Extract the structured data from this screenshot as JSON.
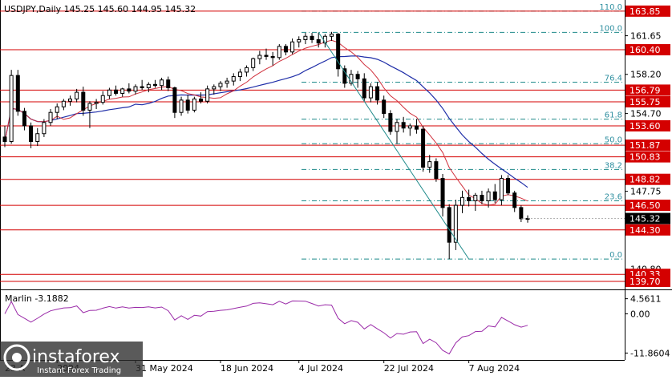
{
  "chart_data": {
    "type": "candlestick",
    "symbol_header": "USDJPY,Daily  145.25 145.60 144.95 145.32",
    "colors": {
      "background": "#ffffff",
      "candle_up": "#ffffff",
      "candle_down": "#000000",
      "level_line": "#d40000",
      "price_badge_red": "#d40000",
      "current_badge": "#000000",
      "fib_line": "#1f8a8a",
      "fib_text": "#2f8fa0",
      "ma_blue": "#1f2ea8",
      "ma_red": "#d0303c",
      "trendline": "#1f8a8a",
      "oscillator": "#9a2aa8"
    },
    "price_axis": {
      "range": [
        139.2,
        164.7
      ],
      "ticks": [
        "161.65",
        "158.20",
        "154.70",
        "147.75",
        "140.80"
      ]
    },
    "level_lines": [
      {
        "price": 163.85,
        "label": "163.85"
      },
      {
        "price": 160.4,
        "label": "160.40"
      },
      {
        "price": 156.79,
        "label": "156.79"
      },
      {
        "price": 155.75,
        "label": "155.75"
      },
      {
        "price": 153.6,
        "label": "153.60"
      },
      {
        "price": 151.87,
        "label": "151.87"
      },
      {
        "price": 150.83,
        "label": "150.83"
      },
      {
        "price": 148.82,
        "label": "148.82"
      },
      {
        "price": 146.5,
        "label": "146.50"
      },
      {
        "price": 144.3,
        "label": "144.30"
      },
      {
        "price": 140.33,
        "label": "140.33"
      },
      {
        "price": 139.7,
        "label": "139.70"
      }
    ],
    "current_price": {
      "price": 145.32,
      "label": "145.32"
    },
    "fibonacci": [
      {
        "price": 163.85,
        "label": "110.0"
      },
      {
        "price": 161.95,
        "label": "100.0"
      },
      {
        "price": 157.5,
        "label": "76.4"
      },
      {
        "price": 154.2,
        "label": "61.8"
      },
      {
        "price": 152.0,
        "label": "50.0"
      },
      {
        "price": 149.7,
        "label": "38.2"
      },
      {
        "price": 146.9,
        "label": "23.6"
      },
      {
        "price": 141.7,
        "label": "0.0"
      }
    ],
    "trendline": {
      "from": {
        "bar": 48,
        "price": 161.95
      },
      "to": {
        "bar": 71,
        "price": 141.7
      }
    },
    "candles": [
      {
        "o": 152.6,
        "h": 153.6,
        "l": 151.7,
        "c": 152.2
      },
      {
        "o": 152.2,
        "h": 158.6,
        "l": 152.0,
        "c": 158.1
      },
      {
        "o": 158.1,
        "h": 158.6,
        "l": 154.5,
        "c": 154.9
      },
      {
        "o": 154.9,
        "h": 155.2,
        "l": 153.2,
        "c": 153.6
      },
      {
        "o": 153.6,
        "h": 153.9,
        "l": 151.6,
        "c": 152.2
      },
      {
        "o": 152.2,
        "h": 153.4,
        "l": 151.8,
        "c": 152.9
      },
      {
        "o": 152.9,
        "h": 154.2,
        "l": 152.6,
        "c": 153.9
      },
      {
        "o": 153.9,
        "h": 155.1,
        "l": 153.6,
        "c": 154.8
      },
      {
        "o": 154.8,
        "h": 155.6,
        "l": 154.2,
        "c": 155.3
      },
      {
        "o": 155.3,
        "h": 156.0,
        "l": 155.0,
        "c": 155.8
      },
      {
        "o": 155.8,
        "h": 156.3,
        "l": 155.4,
        "c": 156.0
      },
      {
        "o": 156.0,
        "h": 156.9,
        "l": 155.7,
        "c": 156.6
      },
      {
        "o": 156.6,
        "h": 157.1,
        "l": 154.5,
        "c": 155.0
      },
      {
        "o": 155.0,
        "h": 155.8,
        "l": 153.4,
        "c": 155.6
      },
      {
        "o": 155.6,
        "h": 156.0,
        "l": 155.1,
        "c": 155.7
      },
      {
        "o": 155.7,
        "h": 156.7,
        "l": 155.5,
        "c": 156.3
      },
      {
        "o": 156.3,
        "h": 157.0,
        "l": 156.0,
        "c": 156.8
      },
      {
        "o": 156.8,
        "h": 157.2,
        "l": 156.3,
        "c": 156.5
      },
      {
        "o": 156.5,
        "h": 157.0,
        "l": 156.2,
        "c": 156.9
      },
      {
        "o": 156.9,
        "h": 157.4,
        "l": 156.5,
        "c": 156.7
      },
      {
        "o": 156.7,
        "h": 157.3,
        "l": 156.4,
        "c": 157.1
      },
      {
        "o": 157.1,
        "h": 157.7,
        "l": 156.8,
        "c": 157.0
      },
      {
        "o": 157.0,
        "h": 157.5,
        "l": 156.6,
        "c": 157.3
      },
      {
        "o": 157.3,
        "h": 157.7,
        "l": 157.0,
        "c": 157.2
      },
      {
        "o": 157.2,
        "h": 157.9,
        "l": 156.8,
        "c": 157.7
      },
      {
        "o": 157.7,
        "h": 158.0,
        "l": 156.7,
        "c": 157.0
      },
      {
        "o": 157.0,
        "h": 157.1,
        "l": 154.3,
        "c": 154.8
      },
      {
        "o": 154.8,
        "h": 156.2,
        "l": 154.5,
        "c": 155.9
      },
      {
        "o": 155.9,
        "h": 156.4,
        "l": 154.7,
        "c": 155.0
      },
      {
        "o": 155.0,
        "h": 156.2,
        "l": 154.8,
        "c": 156.0
      },
      {
        "o": 156.0,
        "h": 156.6,
        "l": 155.6,
        "c": 155.8
      },
      {
        "o": 155.8,
        "h": 157.2,
        "l": 155.6,
        "c": 156.9
      },
      {
        "o": 156.9,
        "h": 157.3,
        "l": 156.4,
        "c": 157.1
      },
      {
        "o": 157.1,
        "h": 157.6,
        "l": 156.7,
        "c": 157.4
      },
      {
        "o": 157.4,
        "h": 157.9,
        "l": 157.0,
        "c": 157.6
      },
      {
        "o": 157.6,
        "h": 158.3,
        "l": 157.2,
        "c": 158.0
      },
      {
        "o": 158.0,
        "h": 158.7,
        "l": 157.6,
        "c": 158.4
      },
      {
        "o": 158.4,
        "h": 159.0,
        "l": 158.0,
        "c": 158.8
      },
      {
        "o": 158.8,
        "h": 159.7,
        "l": 158.5,
        "c": 159.6
      },
      {
        "o": 159.6,
        "h": 160.3,
        "l": 159.1,
        "c": 159.9
      },
      {
        "o": 159.9,
        "h": 160.5,
        "l": 159.5,
        "c": 159.8
      },
      {
        "o": 159.8,
        "h": 160.2,
        "l": 159.0,
        "c": 159.7
      },
      {
        "o": 159.7,
        "h": 160.9,
        "l": 159.5,
        "c": 160.7
      },
      {
        "o": 160.7,
        "h": 160.9,
        "l": 159.9,
        "c": 160.2
      },
      {
        "o": 160.2,
        "h": 161.4,
        "l": 160.0,
        "c": 161.1
      },
      {
        "o": 161.1,
        "h": 161.6,
        "l": 160.6,
        "c": 161.3
      },
      {
        "o": 161.3,
        "h": 161.9,
        "l": 160.9,
        "c": 161.6
      },
      {
        "o": 161.6,
        "h": 161.9,
        "l": 161.0,
        "c": 161.3
      },
      {
        "o": 161.3,
        "h": 161.95,
        "l": 160.6,
        "c": 161.0
      },
      {
        "o": 161.0,
        "h": 161.8,
        "l": 160.6,
        "c": 161.6
      },
      {
        "o": 161.6,
        "h": 162.0,
        "l": 161.2,
        "c": 161.8
      },
      {
        "o": 161.8,
        "h": 161.9,
        "l": 158.0,
        "c": 158.7
      },
      {
        "o": 158.7,
        "h": 159.0,
        "l": 157.0,
        "c": 157.4
      },
      {
        "o": 157.4,
        "h": 158.6,
        "l": 157.2,
        "c": 158.2
      },
      {
        "o": 158.2,
        "h": 158.5,
        "l": 157.0,
        "c": 157.8
      },
      {
        "o": 157.8,
        "h": 158.3,
        "l": 155.8,
        "c": 156.1
      },
      {
        "o": 156.1,
        "h": 157.4,
        "l": 155.7,
        "c": 157.1
      },
      {
        "o": 157.1,
        "h": 157.5,
        "l": 155.5,
        "c": 155.9
      },
      {
        "o": 155.9,
        "h": 156.3,
        "l": 154.3,
        "c": 154.7
      },
      {
        "o": 154.7,
        "h": 155.0,
        "l": 152.8,
        "c": 153.1
      },
      {
        "o": 153.1,
        "h": 154.2,
        "l": 152.0,
        "c": 153.9
      },
      {
        "o": 153.9,
        "h": 154.4,
        "l": 153.0,
        "c": 153.4
      },
      {
        "o": 153.4,
        "h": 153.8,
        "l": 152.7,
        "c": 153.6
      },
      {
        "o": 153.6,
        "h": 154.2,
        "l": 152.9,
        "c": 153.3
      },
      {
        "o": 153.3,
        "h": 153.6,
        "l": 149.5,
        "c": 149.9
      },
      {
        "o": 149.9,
        "h": 151.0,
        "l": 149.4,
        "c": 150.4
      },
      {
        "o": 150.4,
        "h": 150.7,
        "l": 148.6,
        "c": 148.9
      },
      {
        "o": 148.9,
        "h": 149.3,
        "l": 145.5,
        "c": 146.3
      },
      {
        "o": 146.3,
        "h": 146.6,
        "l": 141.7,
        "c": 143.2
      },
      {
        "o": 143.2,
        "h": 147.0,
        "l": 142.5,
        "c": 146.5
      },
      {
        "o": 146.5,
        "h": 147.8,
        "l": 145.8,
        "c": 147.2
      },
      {
        "o": 147.2,
        "h": 147.9,
        "l": 146.4,
        "c": 146.9
      },
      {
        "o": 146.9,
        "h": 147.6,
        "l": 146.0,
        "c": 147.4
      },
      {
        "o": 147.4,
        "h": 147.8,
        "l": 146.6,
        "c": 146.9
      },
      {
        "o": 146.9,
        "h": 148.0,
        "l": 146.3,
        "c": 147.7
      },
      {
        "o": 147.7,
        "h": 148.4,
        "l": 146.7,
        "c": 147.0
      },
      {
        "o": 147.0,
        "h": 149.2,
        "l": 146.5,
        "c": 148.9
      },
      {
        "o": 148.9,
        "h": 149.2,
        "l": 147.4,
        "c": 147.6
      },
      {
        "o": 147.6,
        "h": 147.8,
        "l": 145.9,
        "c": 146.3
      },
      {
        "o": 146.3,
        "h": 146.5,
        "l": 145.0,
        "c": 145.3
      },
      {
        "o": 145.25,
        "h": 145.6,
        "l": 144.95,
        "c": 145.32
      }
    ],
    "x_axis": {
      "labels": [
        {
          "bar": 0,
          "label": "23 A"
        },
        {
          "bar": 8,
          "label": "2024"
        },
        {
          "bar": 20,
          "label": "31 May 2024"
        },
        {
          "bar": 33,
          "label": "18 Jun 2024"
        },
        {
          "bar": 45,
          "label": "4 Jul 2024"
        },
        {
          "bar": 58,
          "label": "22 Jul 2024"
        },
        {
          "bar": 71,
          "label": "7 Aug 2024"
        }
      ]
    },
    "oscillator": {
      "name": "Marlin -3.1882",
      "range": [
        -12.5,
        5.2
      ],
      "ticks": [
        "4.5611",
        "0.00",
        "-11.8604"
      ]
    }
  },
  "watermark": {
    "brand": "instaforex",
    "tagline": "Instant Forex Trading"
  }
}
